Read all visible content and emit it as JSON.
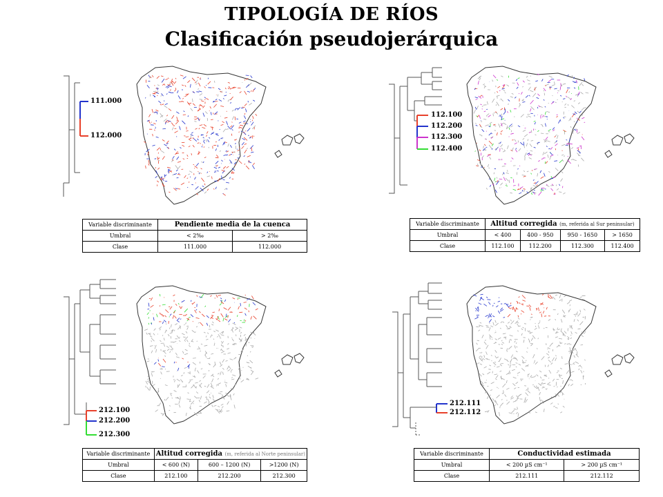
{
  "title": {
    "line1": "TIPOLOGÍA DE RÍOS",
    "line2": "Clasificación pseudojerárquica"
  },
  "panels": [
    {
      "codes": [
        "111.000",
        "112.000"
      ],
      "table": {
        "row1_label": "Variable discriminante",
        "variable": "Pendiente media de la cuenca",
        "variable_note": "",
        "row2_label": "Umbral",
        "thresholds": [
          "< 2‰",
          "> 2‰"
        ],
        "row3_label": "Clase",
        "classes": [
          "111.000",
          "112.000"
        ]
      }
    },
    {
      "codes": [
        "112.100",
        "112.200",
        "112.300",
        "112.400"
      ],
      "table": {
        "row1_label": "Variable discriminante",
        "variable": "Altitud corregida",
        "variable_note": "(m, referida al Sur peninsular)",
        "row2_label": "Umbral",
        "thresholds": [
          "< 400",
          "400 - 950",
          "950 - 1650",
          "> 1650"
        ],
        "row3_label": "Clase",
        "classes": [
          "112.100",
          "112.200",
          "112.300",
          "112.400"
        ]
      }
    },
    {
      "codes": [
        "212.100",
        "212.200",
        "212.300"
      ],
      "table": {
        "row1_label": "Variable discriminante",
        "variable": "Altitud corregida",
        "variable_note": "(m, referida al Norte peninsular)",
        "row2_label": "Umbral",
        "thresholds": [
          "< 600 (N)",
          "600 – 1200 (N)",
          ">1200 (N)"
        ],
        "row3_label": "Clase",
        "classes": [
          "212.100",
          "212.200",
          "212.300"
        ]
      }
    },
    {
      "codes": [
        "212.111",
        "212.112"
      ],
      "table": {
        "row1_label": "Variable discriminante",
        "variable": "Conductividad estimada",
        "variable_note": "",
        "row2_label": "Umbral",
        "thresholds": [
          "< 200 µS cm⁻¹",
          "> 200 µS cm⁻¹"
        ],
        "row3_label": "Clase",
        "classes": [
          "212.111",
          "212.112"
        ]
      }
    }
  ],
  "colors": {
    "red": "#e8402a",
    "blue": "#2233cc",
    "magenta": "#cc33cc",
    "green": "#33dd33",
    "gray": "#aaaaaa"
  }
}
